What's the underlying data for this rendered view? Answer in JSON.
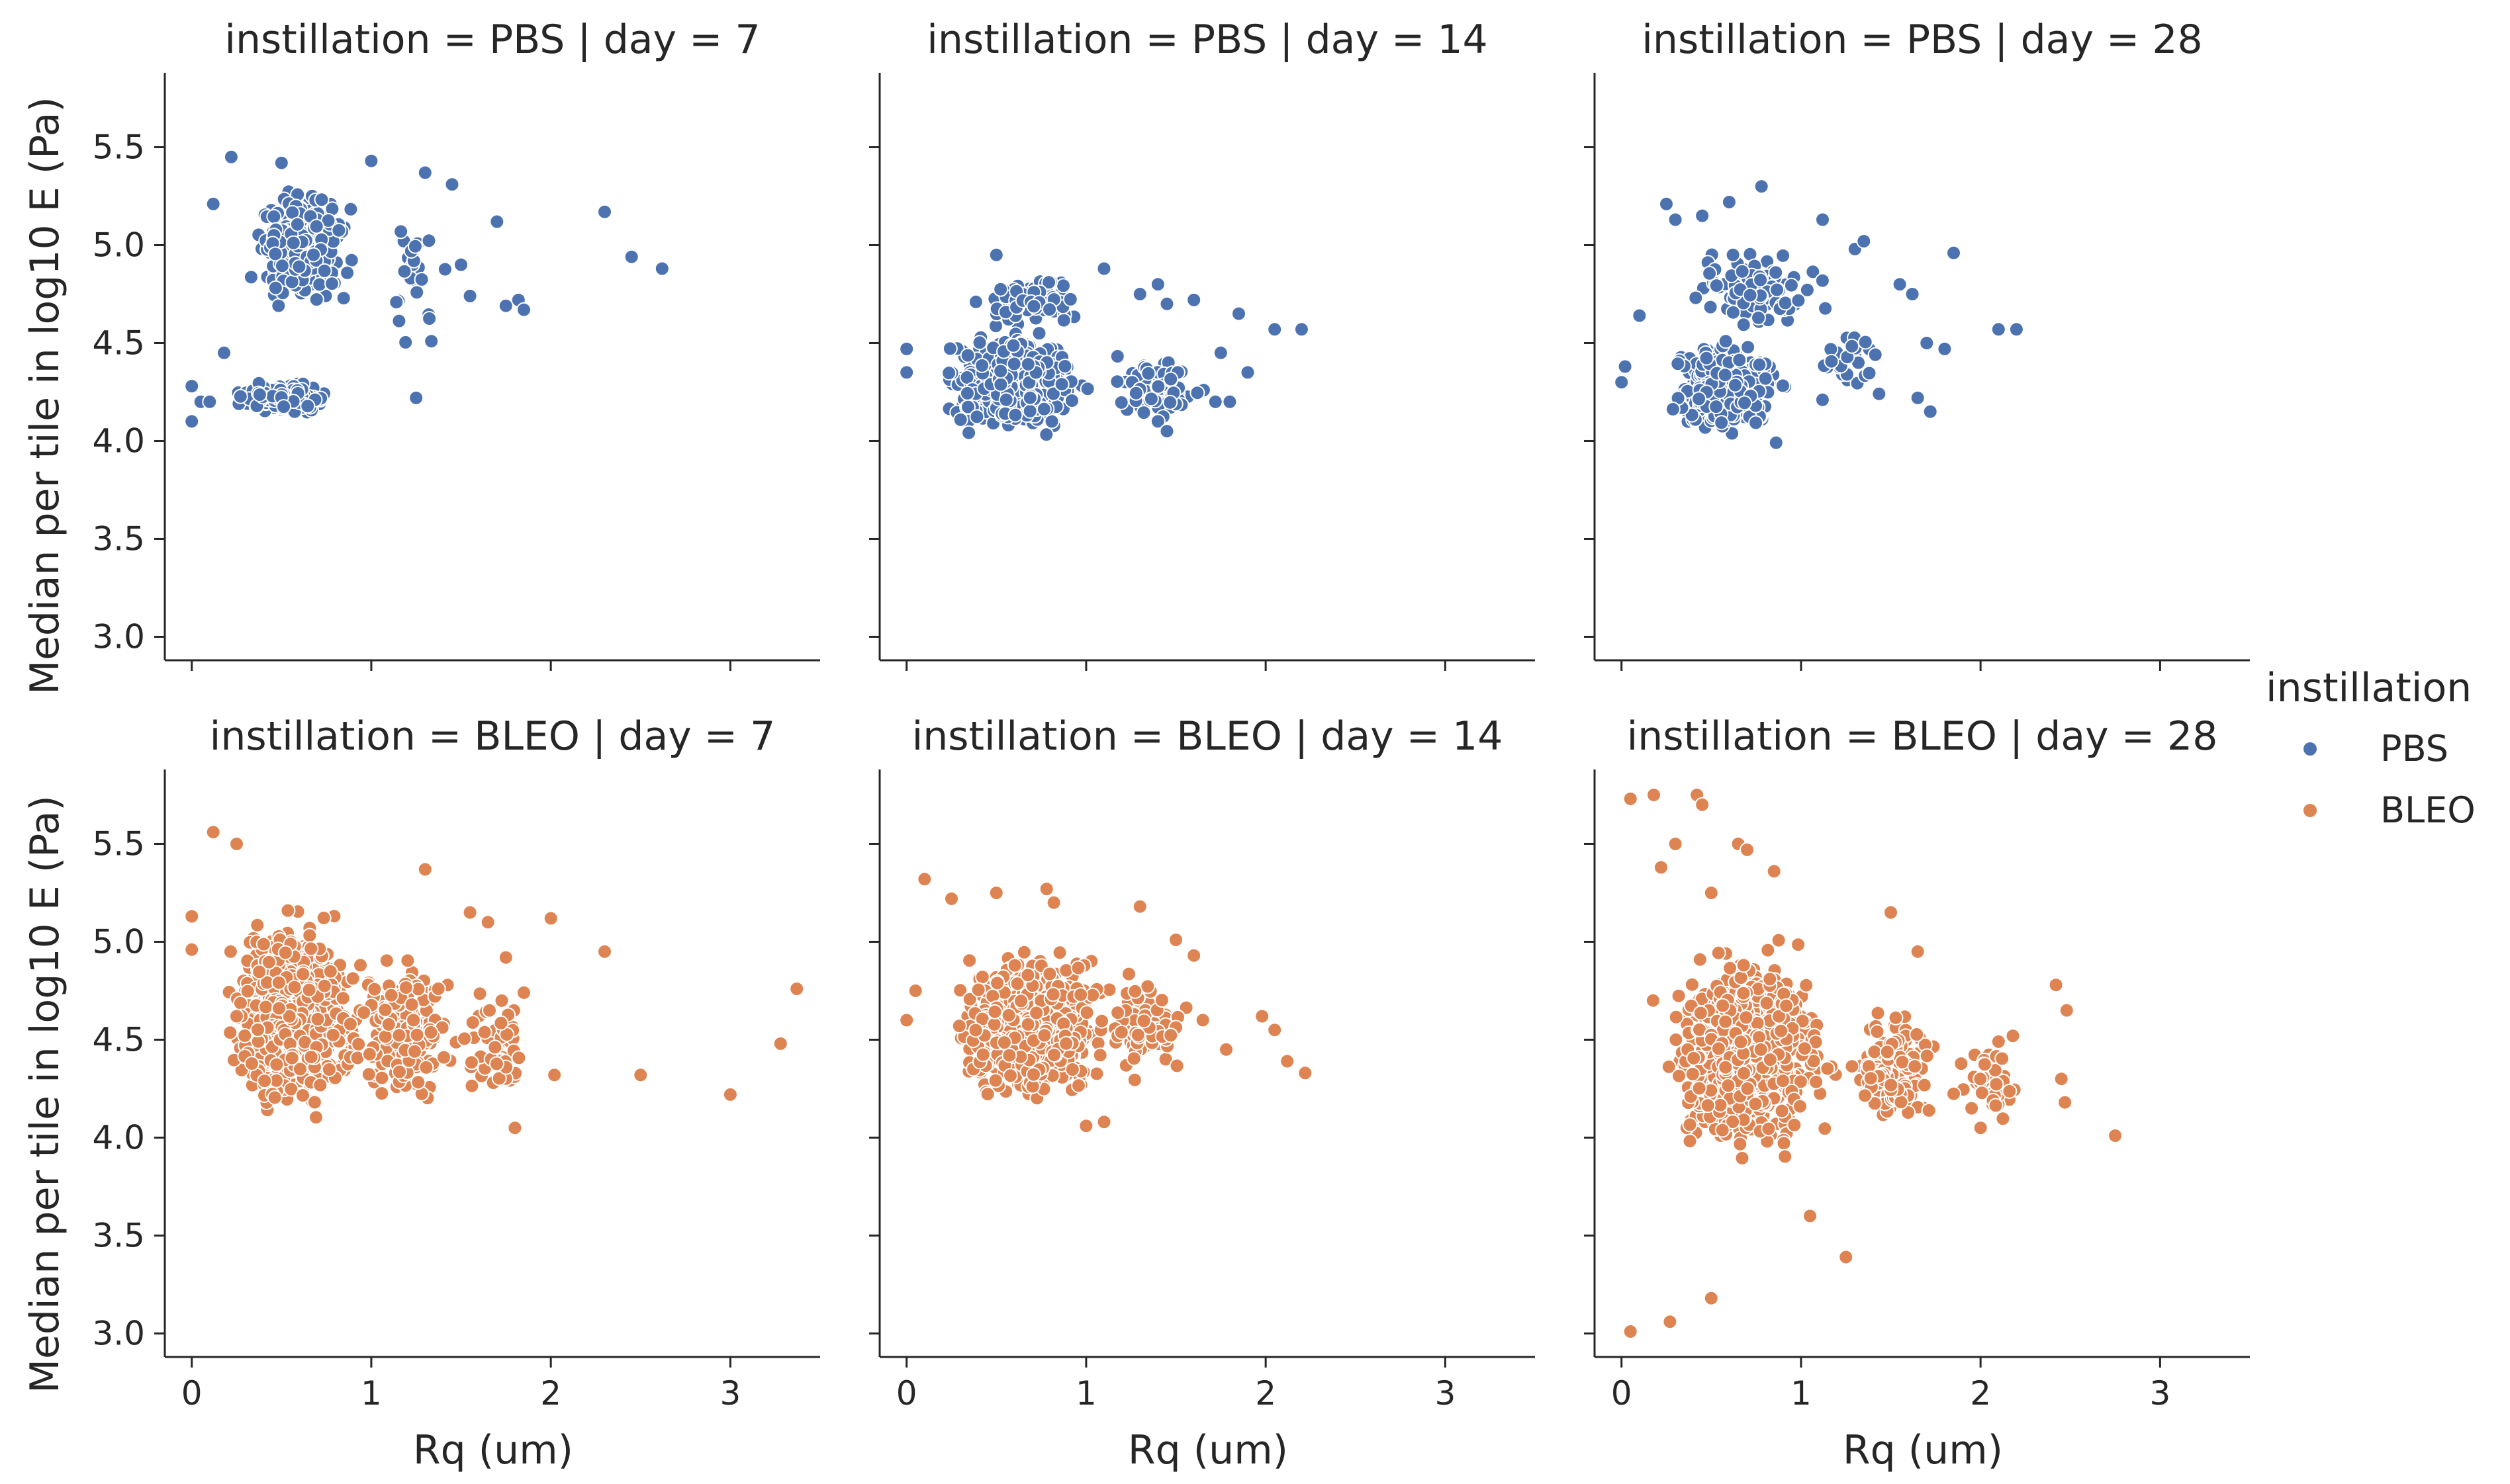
{
  "chart_data": {
    "type": "scatter",
    "layout": "facet-grid",
    "rows": [
      "PBS",
      "BLEO"
    ],
    "cols": [
      "7",
      "14",
      "28"
    ],
    "xlabel": "Rq (um)",
    "ylabel": "Median per tile in log10 E (Pa)",
    "xlim": [
      -0.15,
      3.5
    ],
    "ylim": [
      2.88,
      5.88
    ],
    "xticks": [
      0,
      1,
      2,
      3
    ],
    "yticks": [
      3.0,
      3.5,
      4.0,
      4.5,
      5.0,
      5.5
    ],
    "xtick_labels": [
      "0",
      "1",
      "2",
      "3"
    ],
    "ytick_labels": [
      "3.0",
      "3.5",
      "4.0",
      "4.5",
      "5.0",
      "5.5"
    ],
    "grid": false,
    "legend": {
      "title": "instillation",
      "placement": "right",
      "entries": [
        {
          "label": "PBS",
          "color": "#4c72b0"
        },
        {
          "label": "BLEO",
          "color": "#dd8452"
        }
      ]
    },
    "panels": [
      {
        "title": "instillation = PBS | day = 7",
        "instillation": "PBS",
        "day": "7",
        "color": "#4c72b0",
        "clusters": [
          {
            "n": 220,
            "cx": [
              0.18,
              0.85
            ],
            "cy": [
              4.12,
              4.32
            ]
          },
          {
            "n": 230,
            "cx": [
              0.2,
              1.0
            ],
            "cy": [
              4.55,
              5.42
            ]
          },
          {
            "n": 25,
            "cx": [
              1.0,
              1.5
            ],
            "cy": [
              4.2,
              5.4
            ]
          }
        ],
        "points": [
          {
            "x": 0.0,
            "y": 4.1
          },
          {
            "x": 0.0,
            "y": 4.28
          },
          {
            "x": 0.05,
            "y": 4.2
          },
          {
            "x": 0.1,
            "y": 4.2
          },
          {
            "x": 0.18,
            "y": 4.45
          },
          {
            "x": 0.12,
            "y": 5.21
          },
          {
            "x": 0.22,
            "y": 5.45
          },
          {
            "x": 0.5,
            "y": 5.42
          },
          {
            "x": 1.0,
            "y": 5.43
          },
          {
            "x": 1.3,
            "y": 5.37
          },
          {
            "x": 1.45,
            "y": 5.31
          },
          {
            "x": 1.5,
            "y": 4.9
          },
          {
            "x": 1.55,
            "y": 4.74
          },
          {
            "x": 1.7,
            "y": 5.12
          },
          {
            "x": 1.75,
            "y": 4.69
          },
          {
            "x": 1.82,
            "y": 4.72
          },
          {
            "x": 1.85,
            "y": 4.67
          },
          {
            "x": 2.3,
            "y": 5.17
          },
          {
            "x": 2.45,
            "y": 4.94
          },
          {
            "x": 2.62,
            "y": 4.88
          },
          {
            "x": 1.25,
            "y": 4.22
          }
        ]
      },
      {
        "title": "instillation = PBS | day = 14",
        "instillation": "PBS",
        "day": "14",
        "color": "#4c72b0",
        "clusters": [
          {
            "n": 560,
            "cx": [
              0.1,
              1.1
            ],
            "cy": [
              3.95,
              4.65
            ]
          },
          {
            "n": 70,
            "cx": [
              0.3,
              1.1
            ],
            "cy": [
              4.55,
              4.9
            ]
          },
          {
            "n": 60,
            "cx": [
              1.0,
              1.8
            ],
            "cy": [
              4.0,
              4.55
            ]
          }
        ],
        "points": [
          {
            "x": 0.0,
            "y": 4.35
          },
          {
            "x": 0.0,
            "y": 4.47
          },
          {
            "x": 0.5,
            "y": 4.95
          },
          {
            "x": 1.1,
            "y": 4.88
          },
          {
            "x": 1.3,
            "y": 4.75
          },
          {
            "x": 1.4,
            "y": 4.8
          },
          {
            "x": 1.45,
            "y": 4.7
          },
          {
            "x": 1.6,
            "y": 4.72
          },
          {
            "x": 1.75,
            "y": 4.45
          },
          {
            "x": 1.85,
            "y": 4.65
          },
          {
            "x": 1.9,
            "y": 4.35
          },
          {
            "x": 2.05,
            "y": 4.57
          },
          {
            "x": 2.2,
            "y": 4.57
          },
          {
            "x": 1.72,
            "y": 4.2
          },
          {
            "x": 1.8,
            "y": 4.2
          },
          {
            "x": 1.4,
            "y": 4.1
          },
          {
            "x": 1.45,
            "y": 4.05
          }
        ]
      },
      {
        "title": "instillation = PBS | day = 28",
        "instillation": "PBS",
        "day": "28",
        "color": "#4c72b0",
        "clusters": [
          {
            "n": 380,
            "cx": [
              0.15,
              1.0
            ],
            "cy": [
              3.95,
              4.6
            ]
          },
          {
            "n": 110,
            "cx": [
              0.25,
              1.2
            ],
            "cy": [
              4.5,
              5.05
            ]
          },
          {
            "n": 25,
            "cx": [
              1.0,
              1.55
            ],
            "cy": [
              4.1,
              4.7
            ]
          }
        ],
        "points": [
          {
            "x": 0.0,
            "y": 4.3
          },
          {
            "x": 0.02,
            "y": 4.38
          },
          {
            "x": 0.1,
            "y": 4.64
          },
          {
            "x": 0.25,
            "y": 5.21
          },
          {
            "x": 0.3,
            "y": 5.13
          },
          {
            "x": 0.45,
            "y": 5.15
          },
          {
            "x": 0.6,
            "y": 5.22
          },
          {
            "x": 0.78,
            "y": 5.3
          },
          {
            "x": 1.12,
            "y": 5.13
          },
          {
            "x": 1.3,
            "y": 4.98
          },
          {
            "x": 1.35,
            "y": 5.02
          },
          {
            "x": 1.55,
            "y": 4.8
          },
          {
            "x": 1.62,
            "y": 4.75
          },
          {
            "x": 1.65,
            "y": 4.22
          },
          {
            "x": 1.72,
            "y": 4.15
          },
          {
            "x": 1.7,
            "y": 4.5
          },
          {
            "x": 1.8,
            "y": 4.47
          },
          {
            "x": 1.85,
            "y": 4.96
          },
          {
            "x": 2.1,
            "y": 4.57
          },
          {
            "x": 2.2,
            "y": 4.57
          }
        ]
      },
      {
        "title": "instillation = BLEO | day = 7",
        "instillation": "BLEO",
        "day": "7",
        "color": "#dd8452",
        "clusters": [
          {
            "n": 780,
            "cx": [
              0.1,
              1.05
            ],
            "cy": [
              3.97,
              5.3
            ]
          },
          {
            "n": 220,
            "cx": [
              0.8,
              1.55
            ],
            "cy": [
              4.05,
              5.05
            ]
          },
          {
            "n": 60,
            "cx": [
              1.4,
              2.0
            ],
            "cy": [
              4.05,
              4.9
            ]
          }
        ],
        "points": [
          {
            "x": 0.0,
            "y": 5.13
          },
          {
            "x": 0.0,
            "y": 4.96
          },
          {
            "x": 0.12,
            "y": 5.56
          },
          {
            "x": 0.25,
            "y": 5.5
          },
          {
            "x": 1.3,
            "y": 5.37
          },
          {
            "x": 1.55,
            "y": 5.15
          },
          {
            "x": 1.65,
            "y": 5.1
          },
          {
            "x": 1.75,
            "y": 4.92
          },
          {
            "x": 1.85,
            "y": 4.74
          },
          {
            "x": 1.8,
            "y": 4.05
          },
          {
            "x": 2.0,
            "y": 5.12
          },
          {
            "x": 2.02,
            "y": 4.32
          },
          {
            "x": 2.3,
            "y": 4.95
          },
          {
            "x": 2.5,
            "y": 4.32
          },
          {
            "x": 3.0,
            "y": 4.22
          },
          {
            "x": 3.28,
            "y": 4.48
          },
          {
            "x": 3.37,
            "y": 4.76
          }
        ]
      },
      {
        "title": "instillation = BLEO | day = 14",
        "instillation": "BLEO",
        "day": "14",
        "color": "#dd8452",
        "clusters": [
          {
            "n": 780,
            "cx": [
              0.15,
              1.25
            ],
            "cy": [
              4.08,
              5.08
            ]
          },
          {
            "n": 90,
            "cx": [
              1.0,
              1.65
            ],
            "cy": [
              4.2,
              4.9
            ]
          }
        ],
        "points": [
          {
            "x": 0.0,
            "y": 4.6
          },
          {
            "x": 0.05,
            "y": 4.75
          },
          {
            "x": 0.1,
            "y": 5.32
          },
          {
            "x": 0.25,
            "y": 5.22
          },
          {
            "x": 0.5,
            "y": 5.25
          },
          {
            "x": 0.78,
            "y": 5.27
          },
          {
            "x": 0.82,
            "y": 5.2
          },
          {
            "x": 1.3,
            "y": 5.18
          },
          {
            "x": 1.5,
            "y": 5.01
          },
          {
            "x": 1.6,
            "y": 4.93
          },
          {
            "x": 1.65,
            "y": 4.6
          },
          {
            "x": 1.78,
            "y": 4.45
          },
          {
            "x": 1.98,
            "y": 4.62
          },
          {
            "x": 2.05,
            "y": 4.55
          },
          {
            "x": 2.12,
            "y": 4.39
          },
          {
            "x": 2.22,
            "y": 4.33
          },
          {
            "x": 1.0,
            "y": 4.06
          },
          {
            "x": 1.1,
            "y": 4.08
          }
        ]
      },
      {
        "title": "instillation = BLEO | day = 28",
        "instillation": "BLEO",
        "day": "28",
        "color": "#dd8452",
        "clusters": [
          {
            "n": 860,
            "cx": [
              0.1,
              1.3
            ],
            "cy": [
              3.75,
              5.1
            ]
          },
          {
            "n": 170,
            "cx": [
              1.2,
              1.85
            ],
            "cy": [
              3.95,
              4.75
            ]
          },
          {
            "n": 45,
            "cx": [
              1.8,
              2.3
            ],
            "cy": [
              4.0,
              4.6
            ]
          }
        ],
        "points": [
          {
            "x": 0.05,
            "y": 3.01
          },
          {
            "x": 0.27,
            "y": 3.06
          },
          {
            "x": 0.5,
            "y": 3.18
          },
          {
            "x": 0.05,
            "y": 5.73
          },
          {
            "x": 0.18,
            "y": 5.75
          },
          {
            "x": 0.42,
            "y": 5.75
          },
          {
            "x": 0.45,
            "y": 5.7
          },
          {
            "x": 0.3,
            "y": 5.5
          },
          {
            "x": 0.65,
            "y": 5.5
          },
          {
            "x": 0.7,
            "y": 5.47
          },
          {
            "x": 0.22,
            "y": 5.38
          },
          {
            "x": 0.5,
            "y": 5.25
          },
          {
            "x": 0.85,
            "y": 5.36
          },
          {
            "x": 1.05,
            "y": 3.6
          },
          {
            "x": 1.25,
            "y": 3.39
          },
          {
            "x": 1.5,
            "y": 5.15
          },
          {
            "x": 1.65,
            "y": 4.95
          },
          {
            "x": 2.1,
            "y": 4.49
          },
          {
            "x": 2.18,
            "y": 4.52
          },
          {
            "x": 2.42,
            "y": 4.78
          },
          {
            "x": 2.48,
            "y": 4.65
          },
          {
            "x": 2.45,
            "y": 4.3
          },
          {
            "x": 2.47,
            "y": 4.18
          },
          {
            "x": 2.75,
            "y": 4.01
          },
          {
            "x": 1.95,
            "y": 4.15
          },
          {
            "x": 2.0,
            "y": 4.05
          }
        ]
      }
    ]
  }
}
